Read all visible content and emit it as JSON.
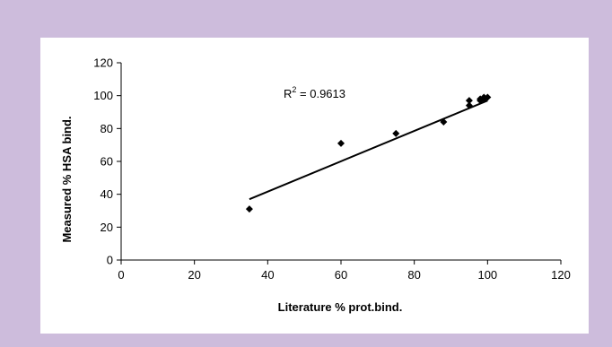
{
  "chart_data": {
    "type": "scatter",
    "xlabel": "Literature % prot.bind.",
    "ylabel": "Measured % HSA bind.",
    "xlim": [
      0,
      120
    ],
    "ylim": [
      0,
      120
    ],
    "x_ticks": [
      0,
      20,
      40,
      60,
      80,
      100,
      120
    ],
    "y_ticks": [
      0,
      20,
      40,
      60,
      80,
      100,
      120
    ],
    "grid": false,
    "marker_color": "#000000",
    "points": [
      {
        "x": 35,
        "y": 31
      },
      {
        "x": 60,
        "y": 71
      },
      {
        "x": 75,
        "y": 77
      },
      {
        "x": 88,
        "y": 84
      },
      {
        "x": 95,
        "y": 94
      },
      {
        "x": 95,
        "y": 97
      },
      {
        "x": 98,
        "y": 98
      },
      {
        "x": 98,
        "y": 97
      },
      {
        "x": 99,
        "y": 98
      },
      {
        "x": 99,
        "y": 99
      },
      {
        "x": 100,
        "y": 99
      }
    ],
    "trendline": {
      "type": "linear",
      "x": [
        35,
        100
      ],
      "y": [
        37,
        97
      ]
    },
    "annotation": {
      "r_label": "R",
      "r_exponent": "2",
      "r_value": " = 0.9613"
    }
  }
}
